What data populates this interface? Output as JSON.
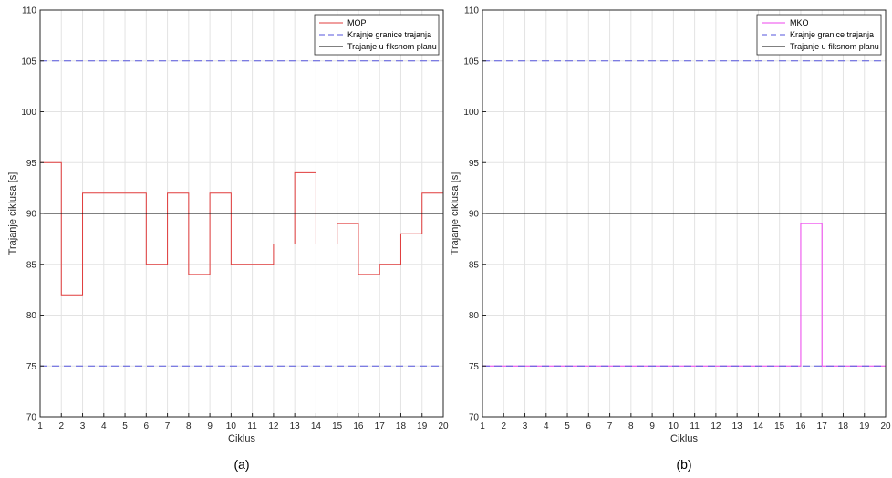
{
  "chart_data": [
    {
      "type": "line",
      "step": true,
      "caption": "(a)",
      "xlabel": "Ciklus",
      "ylabel": "Trajanje ciklusa [s]",
      "xlim": [
        1,
        20
      ],
      "ylim": [
        70,
        110
      ],
      "xticks": [
        1,
        2,
        3,
        4,
        5,
        6,
        7,
        8,
        9,
        10,
        11,
        12,
        13,
        14,
        15,
        16,
        17,
        18,
        19,
        20
      ],
      "yticks": [
        70,
        75,
        80,
        85,
        90,
        95,
        100,
        105,
        110
      ],
      "grid": true,
      "legend_position": "top-right",
      "x": [
        1,
        2,
        3,
        4,
        5,
        6,
        7,
        8,
        9,
        10,
        11,
        12,
        13,
        14,
        15,
        16,
        17,
        18,
        19,
        20
      ],
      "series": [
        {
          "name": "MOP",
          "color": "#e03c3c",
          "style": "solid",
          "values": [
            95,
            82,
            92,
            92,
            92,
            85,
            92,
            84,
            92,
            85,
            85,
            87,
            94,
            87,
            89,
            84,
            85,
            88,
            92,
            84
          ]
        },
        {
          "name": "Krajnje granice trajanja",
          "color": "#5555dd",
          "style": "dashed",
          "values_lower": 75,
          "values_upper": 105
        },
        {
          "name": "Trajanje u fiksnom planu",
          "color": "#000000",
          "style": "solid",
          "constant": 90
        }
      ]
    },
    {
      "type": "line",
      "step": true,
      "caption": "(b)",
      "xlabel": "Ciklus",
      "ylabel": "Trajanje ciklusa [s]",
      "xlim": [
        1,
        20
      ],
      "ylim": [
        70,
        110
      ],
      "xticks": [
        1,
        2,
        3,
        4,
        5,
        6,
        7,
        8,
        9,
        10,
        11,
        12,
        13,
        14,
        15,
        16,
        17,
        18,
        19,
        20
      ],
      "yticks": [
        70,
        75,
        80,
        85,
        90,
        95,
        100,
        105,
        110
      ],
      "grid": true,
      "legend_position": "top-right",
      "x": [
        1,
        2,
        3,
        4,
        5,
        6,
        7,
        8,
        9,
        10,
        11,
        12,
        13,
        14,
        15,
        16,
        17,
        18,
        19,
        20
      ],
      "series": [
        {
          "name": "MKO",
          "color": "#ee44ee",
          "style": "solid",
          "values": [
            75,
            75,
            75,
            75,
            75,
            75,
            75,
            75,
            75,
            75,
            75,
            75,
            75,
            75,
            75,
            89,
            75,
            75,
            75,
            75
          ]
        },
        {
          "name": "Krajnje granice trajanja",
          "color": "#5555dd",
          "style": "dashed",
          "values_lower": 75,
          "values_upper": 105
        },
        {
          "name": "Trajanje u fiksnom planu",
          "color": "#000000",
          "style": "solid",
          "constant": 90
        }
      ]
    }
  ]
}
